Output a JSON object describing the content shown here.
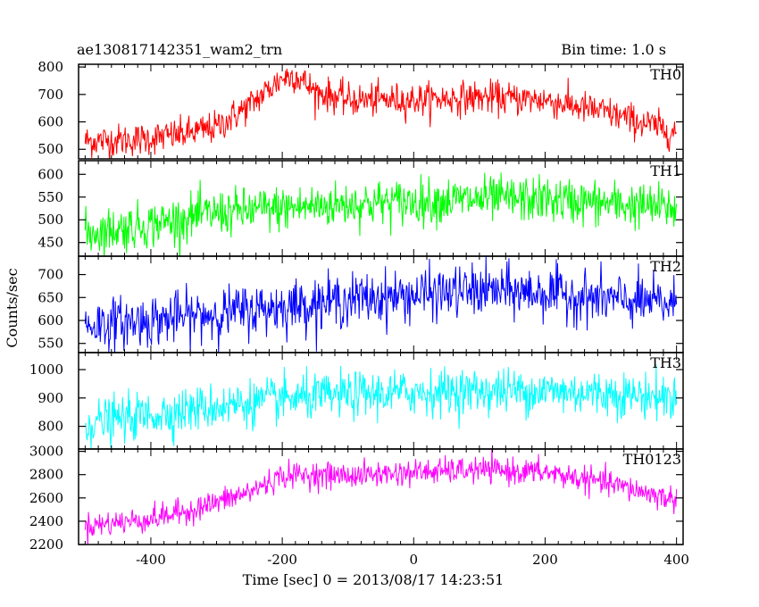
{
  "chart_data": {
    "type": "line",
    "title": "ae130817142351_wam2_trn",
    "subtitle": "Bin time: 1.0 s",
    "xlabel": "Time [sec] 0 = 2013/08/17 14:23:51",
    "ylabel": "Counts/sec",
    "xlim": [
      -510,
      410
    ],
    "x_ticks": [
      -400,
      -200,
      0,
      200,
      400
    ],
    "grid": false,
    "panels": [
      {
        "name": "TH0",
        "color": "#ff0000",
        "ylim": [
          465,
          810
        ],
        "y_ticks": [
          500,
          600,
          700,
          800
        ],
        "noise": 30,
        "trend": [
          [
            -500,
            530
          ],
          [
            -420,
            535
          ],
          [
            -350,
            555
          ],
          [
            -300,
            580
          ],
          [
            -250,
            660
          ],
          [
            -200,
            760
          ],
          [
            -180,
            770
          ],
          [
            -150,
            710
          ],
          [
            -100,
            680
          ],
          [
            0,
            680
          ],
          [
            100,
            690
          ],
          [
            200,
            680
          ],
          [
            300,
            630
          ],
          [
            400,
            560
          ]
        ]
      },
      {
        "name": "TH1",
        "color": "#00ff00",
        "ylim": [
          420,
          630
        ],
        "y_ticks": [
          450,
          500,
          550,
          600
        ],
        "noise": 25,
        "trend": [
          [
            -500,
            470
          ],
          [
            -400,
            490
          ],
          [
            -300,
            515
          ],
          [
            -200,
            525
          ],
          [
            -100,
            535
          ],
          [
            0,
            540
          ],
          [
            100,
            545
          ],
          [
            200,
            545
          ],
          [
            300,
            535
          ],
          [
            400,
            525
          ]
        ]
      },
      {
        "name": "TH2",
        "color": "#0000ff",
        "ylim": [
          530,
          740
        ],
        "y_ticks": [
          550,
          600,
          650,
          700
        ],
        "noise": 28,
        "trend": [
          [
            -500,
            590
          ],
          [
            -400,
            600
          ],
          [
            -300,
            615
          ],
          [
            -200,
            630
          ],
          [
            -100,
            645
          ],
          [
            0,
            655
          ],
          [
            100,
            665
          ],
          [
            200,
            660
          ],
          [
            300,
            645
          ],
          [
            400,
            635
          ]
        ]
      },
      {
        "name": "TH3",
        "color": "#00ffff",
        "ylim": [
          720,
          1060
        ],
        "y_ticks": [
          800,
          900,
          1000
        ],
        "noise": 40,
        "trend": [
          [
            -500,
            810
          ],
          [
            -400,
            840
          ],
          [
            -300,
            870
          ],
          [
            -200,
            895
          ],
          [
            -100,
            910
          ],
          [
            0,
            920
          ],
          [
            100,
            925
          ],
          [
            200,
            925
          ],
          [
            300,
            915
          ],
          [
            400,
            900
          ]
        ]
      },
      {
        "name": "TH0123",
        "color": "#ff00ff",
        "ylim": [
          2200,
          3020
        ],
        "y_ticks": [
          2200,
          2400,
          2600,
          2800,
          3000
        ],
        "noise": 55,
        "trend": [
          [
            -500,
            2360
          ],
          [
            -400,
            2420
          ],
          [
            -350,
            2480
          ],
          [
            -300,
            2560
          ],
          [
            -250,
            2650
          ],
          [
            -200,
            2790
          ],
          [
            -150,
            2800
          ],
          [
            -100,
            2790
          ],
          [
            0,
            2820
          ],
          [
            100,
            2840
          ],
          [
            200,
            2820
          ],
          [
            300,
            2720
          ],
          [
            400,
            2580
          ]
        ]
      }
    ]
  }
}
